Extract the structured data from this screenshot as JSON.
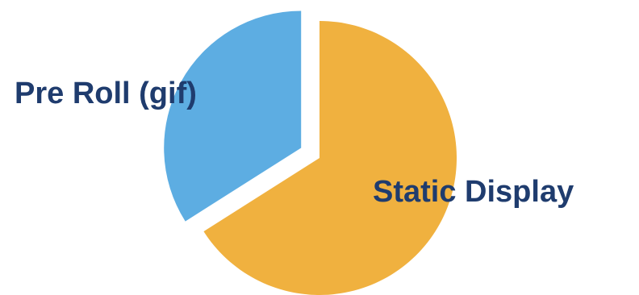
{
  "colors": {
    "background": "#ffffff",
    "label_text": "#1f3c6e"
  },
  "chart_data": {
    "type": "pie",
    "title": "",
    "legend": "none",
    "exploded": true,
    "start_angle_deg": 0,
    "slices": [
      {
        "label": "Static Display",
        "value": 66,
        "color": "#f0b13f"
      },
      {
        "label": "Pre Roll (gif)",
        "value": 34,
        "color": "#5dade2"
      }
    ]
  }
}
